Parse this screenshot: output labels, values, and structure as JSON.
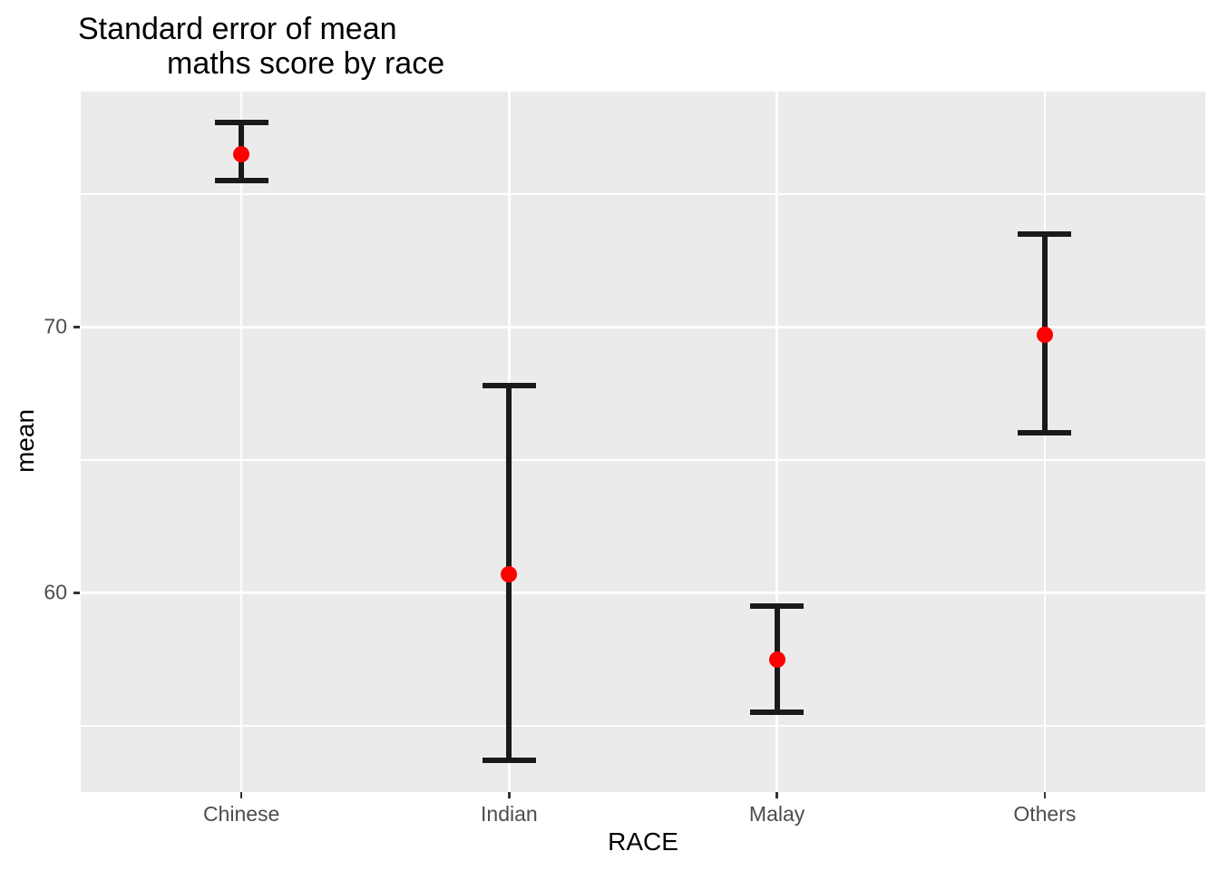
{
  "title": {
    "line1": "Standard error of mean",
    "line2": "maths score by race"
  },
  "chart_data": {
    "type": "scatter",
    "subtype": "point-with-errorbars",
    "title": "Standard error of mean maths score by race",
    "xlabel": "RACE",
    "ylabel": "mean",
    "categories": [
      "Chinese",
      "Indian",
      "Malay",
      "Others"
    ],
    "series": [
      {
        "name": "mean",
        "values": [
          76.5,
          60.7,
          57.5,
          69.7
        ]
      },
      {
        "name": "lower",
        "values": [
          75.5,
          53.7,
          55.5,
          66.0
        ]
      },
      {
        "name": "upper",
        "values": [
          77.7,
          67.8,
          59.5,
          73.5
        ]
      }
    ],
    "ylim": [
      52.5,
      78.85
    ],
    "y_major_ticks": [
      60,
      70
    ],
    "y_major_tick_labels": [
      "60",
      "70"
    ],
    "y_minor_gridlines": [
      55,
      65,
      75
    ],
    "grid": "on",
    "legend": "none",
    "colors": {
      "point": "#FF0000",
      "errorbar": "#1A1A1A",
      "panel_background": "#EBEBEB",
      "gridline": "#FFFFFF",
      "tick_label": "#4D4D4D",
      "tick_mark": "#333333",
      "text": "#000000"
    }
  }
}
